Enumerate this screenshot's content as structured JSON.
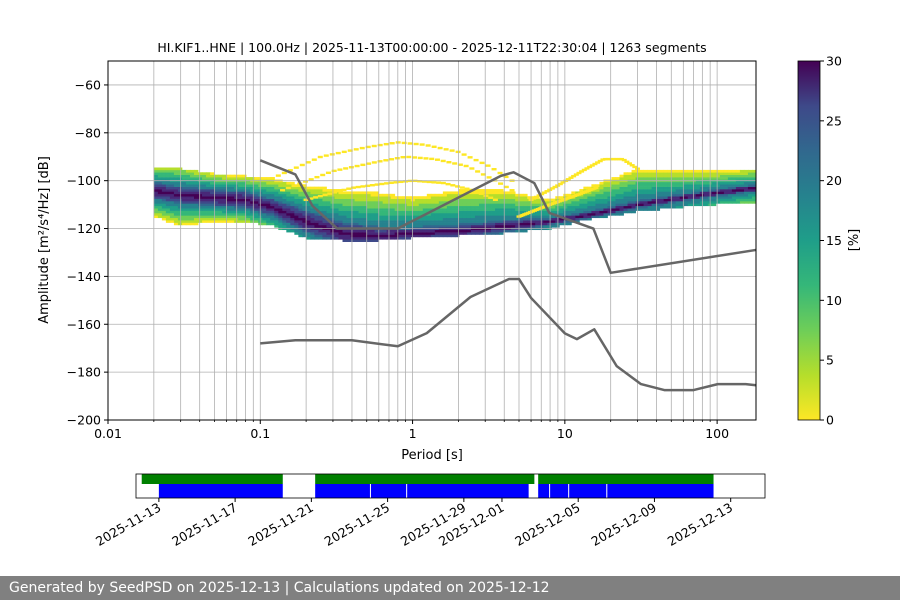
{
  "chart_data": {
    "type": "heatmap",
    "title": "HI.KIF1..HNE | 100.0Hz | 2025-11-13T00:00:00 - 2025-12-11T22:30:04 | 1263 segments",
    "xlabel": "Period [s]",
    "ylabel": "Amplitude [m²/s⁴/Hz] [dB]",
    "xscale": "log",
    "xlim": [
      0.01,
      180
    ],
    "ylim": [
      -200,
      -50
    ],
    "x_ticks": [
      0.01,
      0.1,
      1,
      10,
      100
    ],
    "x_tick_labels": [
      "0.01",
      "0.1",
      "1",
      "10",
      "100"
    ],
    "y_ticks": [
      -200,
      -180,
      -160,
      -140,
      -120,
      -100,
      -80,
      -60
    ],
    "y_tick_labels": [
      "−200",
      "−180",
      "−160",
      "−140",
      "−120",
      "−100",
      "−80",
      "−60"
    ],
    "grid": "x",
    "colorbar": {
      "label": "[%]",
      "range": [
        0,
        30
      ],
      "ticks": [
        0,
        5,
        10,
        15,
        20,
        25,
        30
      ],
      "tick_labels": [
        "0",
        "5",
        "10",
        "15",
        "20",
        "25",
        "30"
      ],
      "colormap": "viridis_r"
    },
    "mode_curve": {
      "period": [
        0.02,
        0.03,
        0.05,
        0.08,
        0.12,
        0.2,
        0.35,
        0.6,
        1,
        2,
        4,
        8,
        15,
        30,
        60,
        100,
        180
      ],
      "amplitude": [
        -104,
        -106,
        -107,
        -108,
        -111,
        -117,
        -122,
        -123,
        -122,
        -121,
        -119,
        -117,
        -114,
        -110,
        -107,
        -105,
        -103
      ]
    },
    "bands": {
      "inner_half_width": [
        3,
        3,
        3,
        3,
        3,
        4,
        4,
        3,
        2,
        2,
        2,
        1,
        1,
        1,
        1,
        1,
        1
      ],
      "outer_upper": [
        -95,
        -95,
        -97,
        -98,
        -99,
        -102,
        -104,
        -105,
        -107,
        -104,
        -104,
        -108,
        -102,
        -95,
        -96,
        -96,
        -95
      ],
      "outer_lower": [
        -115,
        -119,
        -117,
        -117,
        -119,
        -124,
        -125,
        -125,
        -124,
        -123,
        -122,
        -120,
        -116,
        -113,
        -111,
        -110,
        -109
      ]
    },
    "scatter_arcs": [
      {
        "x": [
          0.12,
          0.25,
          0.5,
          0.8,
          1.2,
          2,
          3.2,
          4.5
        ],
        "y": [
          -99,
          -90,
          -86,
          -84,
          -85,
          -88,
          -94,
          -100
        ]
      },
      {
        "x": [
          0.14,
          0.3,
          0.6,
          0.9,
          1.4,
          2.3,
          3.5,
          4.5
        ],
        "y": [
          -104,
          -96,
          -92,
          -90,
          -91,
          -94,
          -100,
          -104
        ]
      },
      {
        "x": [
          0.2,
          0.4,
          0.7,
          1,
          1.6,
          2.5,
          3.5
        ],
        "y": [
          -108,
          -103,
          -101,
          -100,
          -101,
          -104,
          -108
        ]
      },
      {
        "x": [
          6,
          9,
          13,
          18,
          24,
          30
        ],
        "y": [
          -108,
          -102,
          -96,
          -91,
          -91,
          -95
        ]
      },
      {
        "x": [
          5,
          8,
          12,
          16
        ],
        "y": [
          -115,
          -110,
          -106,
          -103
        ]
      }
    ],
    "noise_models": [
      {
        "x": [
          0.1,
          0.17,
          0.22,
          0.32,
          0.8,
          3.8,
          4.6,
          6.3,
          7.9,
          15.4,
          20,
          354
        ],
        "y": [
          -91.5,
          -97.4,
          -110.5,
          -120,
          -120,
          -98,
          -96.5,
          -101,
          -113.5,
          -120,
          -138.5,
          -126
        ]
      },
      {
        "x": [
          0.1,
          0.17,
          0.4,
          0.8,
          1.24,
          2.4,
          4.3,
          5,
          6,
          10,
          12,
          15.6,
          21.9,
          31.6,
          45,
          70,
          101,
          154,
          180
        ],
        "y": [
          -168,
          -166.7,
          -166.7,
          -169.2,
          -163.7,
          -148.6,
          -141.1,
          -141.1,
          -149,
          -163.8,
          -166.2,
          -162.1,
          -177.5,
          -185,
          -187.5,
          -187.5,
          -185,
          -185,
          -185.5
        ]
      }
    ],
    "timeline": {
      "tick_labels": [
        "2025-11-13",
        "2025-11-17",
        "2025-11-21",
        "2025-11-25",
        "2025-11-29",
        "2025-12-01",
        "2025-12-05",
        "2025-12-09",
        "2025-12-13"
      ],
      "tick_days": [
        0,
        4,
        8,
        12,
        16,
        18,
        22,
        26,
        30
      ],
      "range_days": [
        -1.2,
        31.8
      ],
      "green_segments": [
        [
          -0.9,
          6.5
        ],
        [
          8.2,
          19.7
        ],
        [
          19.9,
          29.1
        ]
      ],
      "blue_segments": [
        [
          0,
          6.5
        ],
        [
          8.2,
          19.4
        ],
        [
          19.9,
          29.1
        ]
      ],
      "blue_gaps": [
        11.1,
        13.0,
        20.5,
        21.5,
        23.5
      ],
      "colors": {
        "green": "#008000",
        "blue": "#0000ff"
      }
    }
  },
  "footer": {
    "text": "Generated by SeedPSD on 2025-12-13 | Calculations updated on 2025-12-12"
  },
  "colors": {
    "noise_model": "#666666",
    "grid": "#b0b0b0"
  }
}
